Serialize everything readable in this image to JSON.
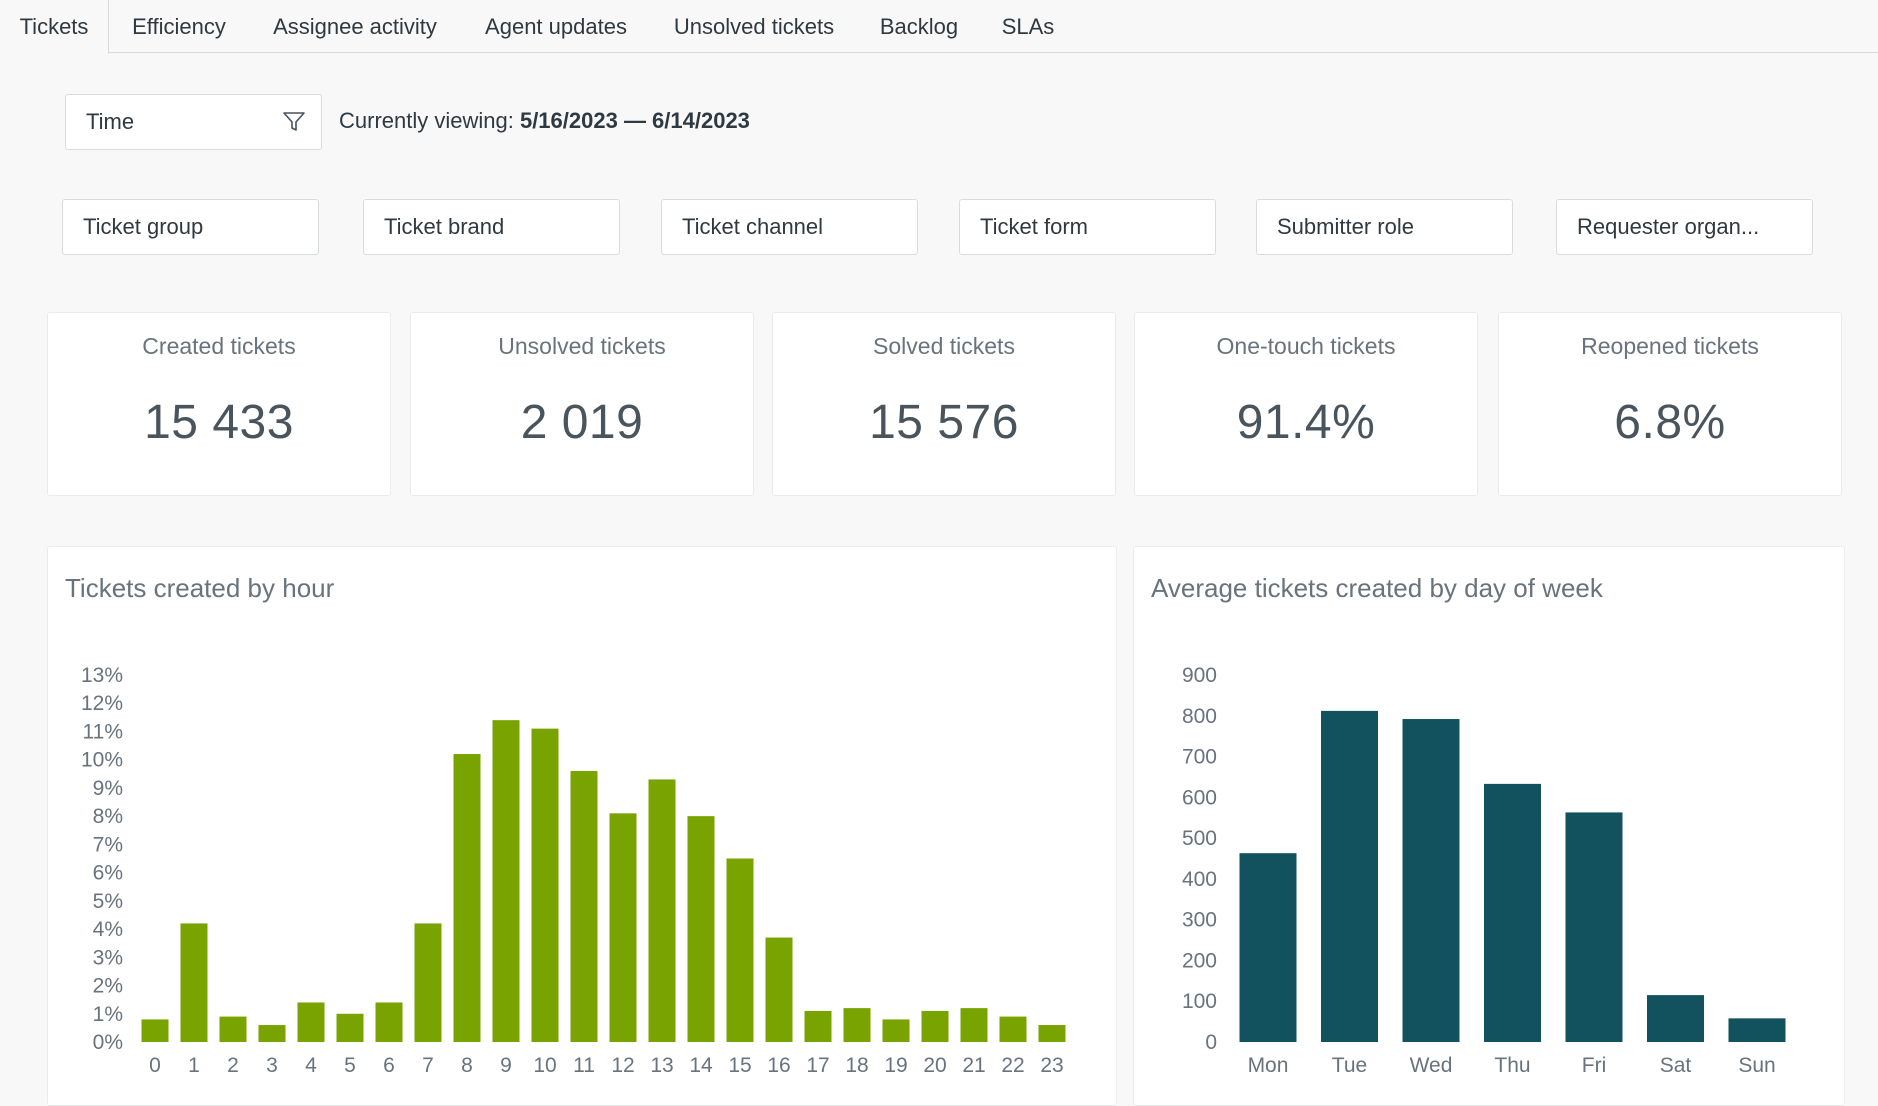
{
  "tabs": [
    {
      "label": "Tickets",
      "active": true
    },
    {
      "label": "Efficiency"
    },
    {
      "label": "Assignee activity"
    },
    {
      "label": "Agent updates"
    },
    {
      "label": "Unsolved tickets"
    },
    {
      "label": "Backlog"
    },
    {
      "label": "SLAs"
    }
  ],
  "time_filter": {
    "label": "Time",
    "icon": "funnel-icon"
  },
  "viewing": {
    "prefix": "Currently viewing: ",
    "range": "5/16/2023 — 6/14/2023"
  },
  "filters": [
    "Ticket group",
    "Ticket brand",
    "Ticket channel",
    "Ticket form",
    "Submitter role",
    "Requester organ..."
  ],
  "kpis": [
    {
      "label": "Created tickets",
      "value": "15 433"
    },
    {
      "label": "Unsolved tickets",
      "value": "2 019"
    },
    {
      "label": "Solved tickets",
      "value": "15 576"
    },
    {
      "label": "One-touch tickets",
      "value": "91.4%"
    },
    {
      "label": "Reopened tickets",
      "value": "6.8%"
    }
  ],
  "panels": {
    "hourly_title": "Tickets created by hour",
    "weekday_title": "Average tickets created by day of week"
  },
  "colors": {
    "hourly_bar": "#78a300",
    "weekday_bar": "#12525e"
  },
  "chart_data": [
    {
      "type": "bar",
      "title": "Tickets created by hour",
      "categories": [
        "0",
        "1",
        "2",
        "3",
        "4",
        "5",
        "6",
        "7",
        "8",
        "9",
        "10",
        "11",
        "12",
        "13",
        "14",
        "15",
        "16",
        "17",
        "18",
        "19",
        "20",
        "21",
        "22",
        "23"
      ],
      "values": [
        0.8,
        4.2,
        0.9,
        0.6,
        1.4,
        1.0,
        1.4,
        4.2,
        10.2,
        11.4,
        11.1,
        9.6,
        8.1,
        9.3,
        8.0,
        6.5,
        3.7,
        1.1,
        1.2,
        0.8,
        1.1,
        1.2,
        0.9,
        0.6
      ],
      "unit": "%",
      "ylim": [
        0,
        13
      ],
      "yticks": [
        "0%",
        "1%",
        "2%",
        "3%",
        "4%",
        "5%",
        "6%",
        "7%",
        "8%",
        "9%",
        "10%",
        "11%",
        "12%",
        "13%"
      ],
      "grid": false,
      "color": "#78a300"
    },
    {
      "type": "bar",
      "title": "Average tickets created by day of week",
      "categories": [
        "Mon",
        "Tue",
        "Wed",
        "Thu",
        "Fri",
        "Sat",
        "Sun"
      ],
      "values": [
        463,
        812,
        792,
        633,
        563,
        115,
        58
      ],
      "ylim": [
        0,
        900
      ],
      "yticks": [
        "0",
        "100",
        "200",
        "300",
        "400",
        "500",
        "600",
        "700",
        "800",
        "900"
      ],
      "grid": false,
      "color": "#12525e"
    }
  ]
}
